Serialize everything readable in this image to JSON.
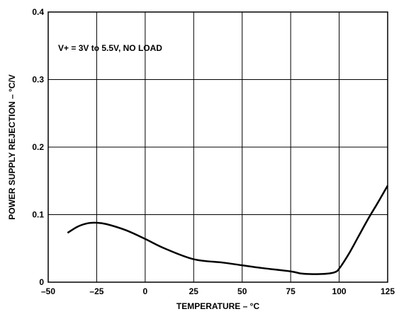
{
  "chart_data": {
    "type": "line",
    "xlabel": "TEMPERATURE – °C",
    "ylabel": "POWER SUPPLY REJECTION – °C/V",
    "xlim": [
      -50,
      125
    ],
    "ylim": [
      0,
      0.4
    ],
    "x_ticks": [
      -50,
      -25,
      0,
      25,
      50,
      75,
      100,
      125
    ],
    "y_ticks": [
      0,
      0.1,
      0.2,
      0.3,
      0.4
    ],
    "x_tick_labels": [
      "–50",
      "–25",
      "0",
      "25",
      "50",
      "75",
      "100",
      "125"
    ],
    "y_tick_labels": [
      "0",
      "0.1",
      "0.2",
      "0.3",
      "0.4"
    ],
    "grid": true,
    "annotation": "V+ = 3V to 5.5V, NO LOAD",
    "series": [
      {
        "x": [
          -40,
          -35,
          -30,
          -25,
          -20,
          -10,
          0,
          10,
          25,
          40,
          50,
          60,
          75,
          80,
          85,
          90,
          95,
          98,
          100,
          105,
          110,
          115,
          120,
          125
        ],
        "y": [
          0.073,
          0.082,
          0.087,
          0.088,
          0.086,
          0.077,
          0.064,
          0.05,
          0.034,
          0.029,
          0.025,
          0.021,
          0.016,
          0.013,
          0.012,
          0.012,
          0.013,
          0.015,
          0.02,
          0.042,
          0.068,
          0.094,
          0.118,
          0.143
        ]
      }
    ]
  }
}
